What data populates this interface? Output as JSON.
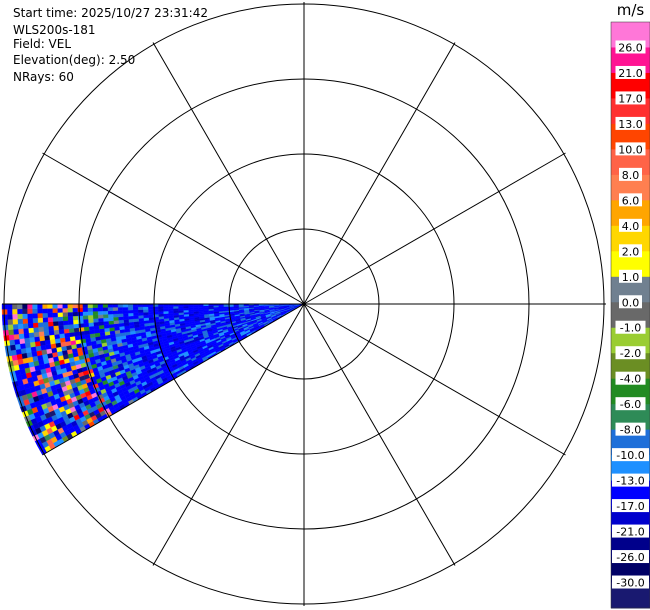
{
  "info": {
    "start_time": "Start time: 2025/10/27 23:31:42",
    "instrument": "WLS200s-181",
    "field": "Field: VEL",
    "elevation": "Elevation(deg): 2.50",
    "nrays": "NRays: 60"
  },
  "chart_data": {
    "type": "heatmap",
    "projection": "polar PPI",
    "field": "VEL",
    "units": "m/s",
    "elevation_deg": 2.5,
    "nrays": 60,
    "range_rings": 4,
    "spokes": 12,
    "sector_azimuth_deg": [
      240,
      270
    ],
    "grid": true,
    "colorbar": {
      "label": "m/s",
      "placement": "right",
      "tick_labels": [
        "26.0",
        "21.0",
        "17.0",
        "13.0",
        "10.0",
        "8.0",
        "6.0",
        "4.0",
        "2.0",
        "1.0",
        "0.0",
        "-1.0",
        "-2.0",
        "-4.0",
        "-6.0",
        "-8.0",
        "-10.0",
        "-13.0",
        "-17.0",
        "-21.0",
        "-26.0",
        "-30.0"
      ],
      "colors": [
        "#ff77d8",
        "#ff1493",
        "#ff0000",
        "#ff3030",
        "#ff4500",
        "#ff6347",
        "#ff7f50",
        "#ffa500",
        "#ffd700",
        "#ffff00",
        "#708090",
        "#696969",
        "#9acd32",
        "#6b8e23",
        "#228b22",
        "#2e8b57",
        "#1e6fd9",
        "#1e90ff",
        "#0000ff",
        "#0000cd",
        "#00008b",
        "#000066",
        "#191970"
      ]
    },
    "dominant_values_ms": [
      -13.0,
      -17.0,
      -10.0
    ]
  }
}
